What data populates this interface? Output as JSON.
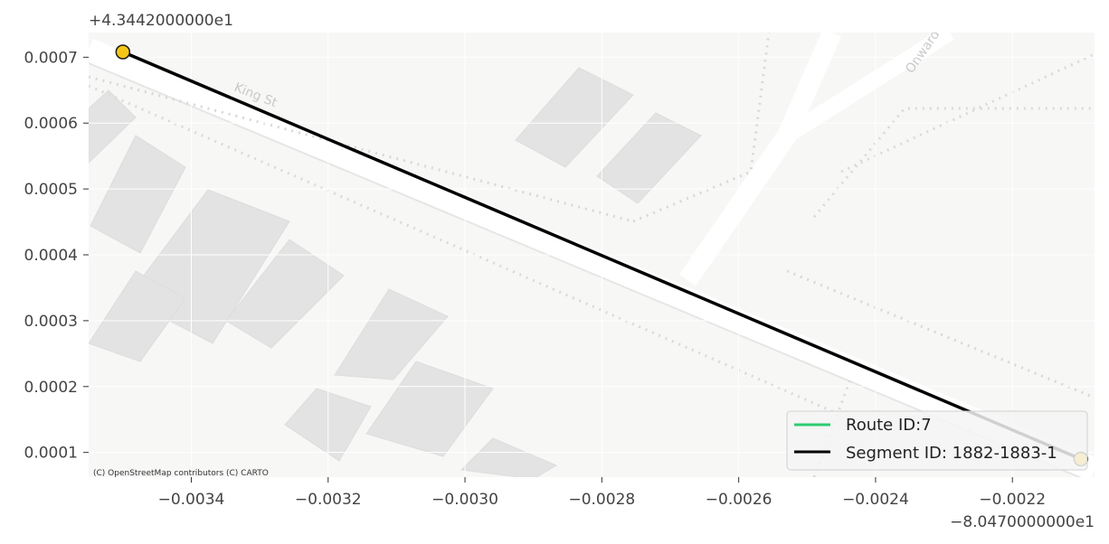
{
  "chart_data": {
    "type": "line",
    "title": "",
    "xlabel": "",
    "ylabel": "",
    "x_offset_label": "−8.0470000000e1",
    "y_offset_label": "+4.3442000000e1",
    "xlim": [
      -0.00355,
      -0.00208
    ],
    "ylim": [
      6.25e-05,
      0.0007375
    ],
    "x_ticks": [
      -0.0034,
      -0.0032,
      -0.003,
      -0.0028,
      -0.0026,
      -0.0024,
      -0.0022
    ],
    "x_tick_labels": [
      "−0.0034",
      "−0.0032",
      "−0.0030",
      "−0.0028",
      "−0.0026",
      "−0.0024",
      "−0.0022"
    ],
    "y_ticks": [
      0.0001,
      0.0002,
      0.0003,
      0.0004,
      0.0005,
      0.0006,
      0.0007
    ],
    "y_tick_labels": [
      "0.0001",
      "0.0002",
      "0.0003",
      "0.0004",
      "0.0005",
      "0.0006",
      "0.0007"
    ],
    "grid": true,
    "legend_position": "bottom-right",
    "series": [
      {
        "name": "Route ID:7",
        "color": "#2ecc71",
        "x": [],
        "y": []
      },
      {
        "name": "Segment ID: 1882-1883-1",
        "color": "#000000",
        "x": [
          -0.0035,
          -0.0021
        ],
        "y": [
          0.000708,
          9e-05
        ]
      }
    ],
    "endpoints": {
      "color": "#f5c518",
      "x": [
        -0.0035,
        -0.0021
      ],
      "y": [
        0.000708,
        9e-05
      ]
    },
    "basemap": {
      "attribution": "(C) OpenStreetMap contributors (C) CARTO",
      "street_labels": [
        "King St",
        "Onward"
      ]
    }
  }
}
